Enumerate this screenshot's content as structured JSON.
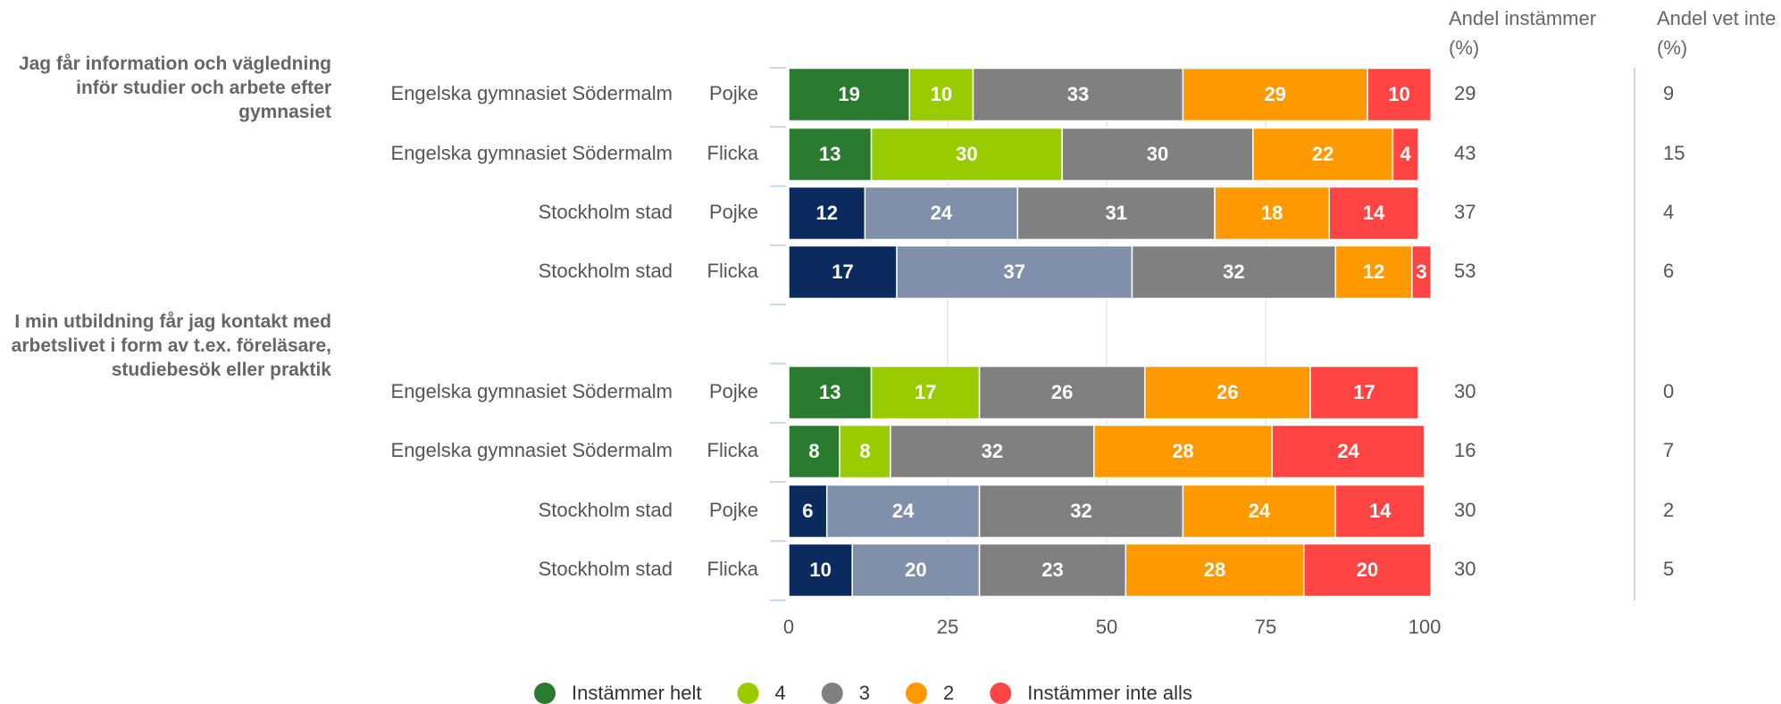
{
  "chart_data": {
    "type": "stacked-bar",
    "orientation": "horizontal",
    "questions": [
      {
        "label": "Jag får information och vägledning inför studier och arbete efter gymnasiet",
        "rows": [
          0,
          1,
          2,
          3
        ]
      },
      {
        "label": "I min utbildning får jag kontakt med arbetslivet i form av t.ex. föreläsare, studiebesök eller praktik",
        "rows": [
          4,
          5,
          6,
          7
        ]
      }
    ],
    "categories": [
      "Engelska gymnasiet Södermalm",
      "Engelska gymnasiet Södermalm",
      "Stockholm stad",
      "Stockholm stad",
      "Engelska gymnasiet Södermalm",
      "Engelska gymnasiet Södermalm",
      "Stockholm stad",
      "Stockholm stad"
    ],
    "subcategories": [
      "Pojke",
      "Flicka",
      "Pojke",
      "Flicka",
      "Pojke",
      "Flicka",
      "Pojke",
      "Flicka"
    ],
    "series": [
      {
        "name": "Instämmer helt",
        "color": "#2a7a30",
        "colors": [
          "#2a7a30",
          "#2a7a30",
          "#0b2a5e",
          "#0b2a5e",
          "#2a7a30",
          "#2a7a30",
          "#0b2a5e",
          "#0b2a5e"
        ],
        "values": [
          19,
          13,
          12,
          17,
          13,
          8,
          6,
          10
        ]
      },
      {
        "name": "4",
        "color": "#99cc00",
        "colors": [
          "#99cc00",
          "#99cc00",
          "#8190aa",
          "#8190aa",
          "#99cc00",
          "#99cc00",
          "#8190aa",
          "#8190aa"
        ],
        "values": [
          10,
          30,
          24,
          37,
          17,
          8,
          24,
          20
        ]
      },
      {
        "name": "3",
        "color": "#808080",
        "colors": [
          "#808080",
          "#808080",
          "#808080",
          "#808080",
          "#808080",
          "#808080",
          "#808080",
          "#808080"
        ],
        "values": [
          33,
          30,
          31,
          32,
          26,
          32,
          32,
          23
        ]
      },
      {
        "name": "2",
        "color": "#ff9900",
        "colors": [
          "#ff9900",
          "#ff9900",
          "#ff9900",
          "#ff9900",
          "#ff9900",
          "#ff9900",
          "#ff9900",
          "#ff9900"
        ],
        "values": [
          29,
          22,
          18,
          12,
          26,
          28,
          24,
          28
        ]
      },
      {
        "name": "Instämmer inte alls",
        "color": "#ff4444",
        "colors": [
          "#ff4444",
          "#ff4444",
          "#ff4444",
          "#ff4444",
          "#ff4444",
          "#ff4444",
          "#ff4444",
          "#ff4444"
        ],
        "values": [
          10,
          4,
          14,
          3,
          17,
          24,
          14,
          20
        ]
      }
    ],
    "columns": [
      {
        "label": "Andel instämmer (%)",
        "values": [
          29,
          43,
          37,
          53,
          30,
          16,
          30,
          30
        ]
      },
      {
        "label": "Andel vet inte (%)",
        "values": [
          9,
          15,
          4,
          6,
          0,
          7,
          2,
          5
        ]
      }
    ],
    "xlim": [
      0,
      100
    ],
    "xticks": [
      0,
      25,
      50,
      75,
      100
    ],
    "grid": true,
    "legend": "bottom"
  }
}
